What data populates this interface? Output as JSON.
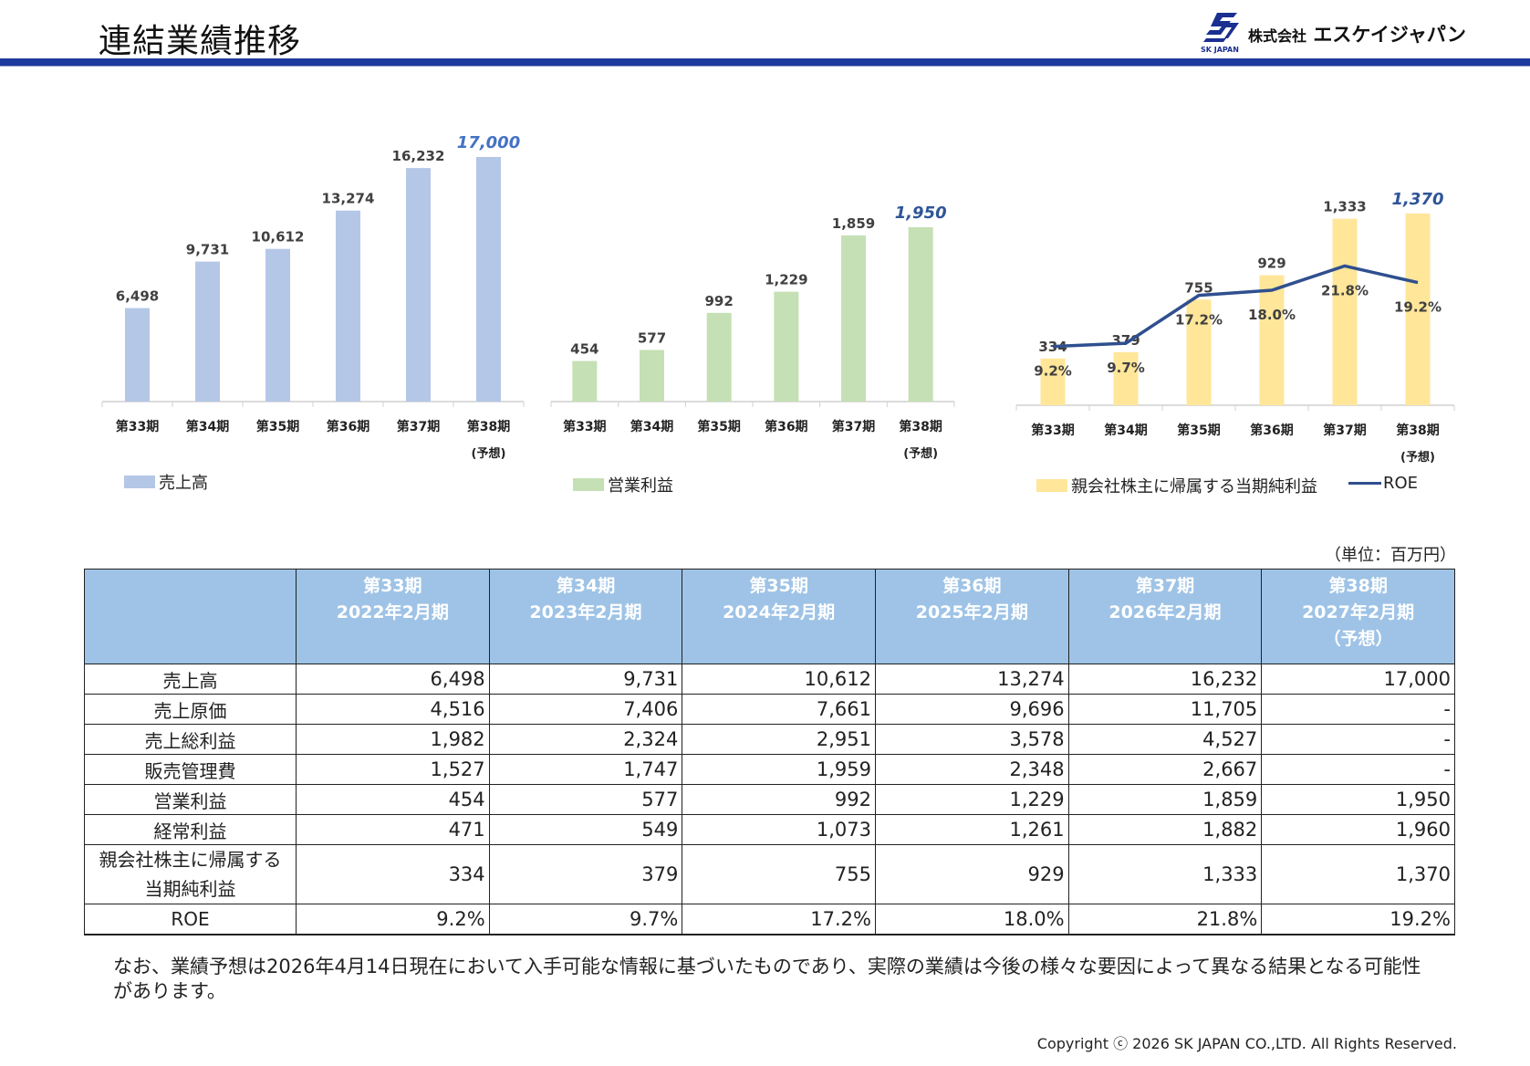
{
  "page": {
    "title": "連結業績推移",
    "company_name": "株式会社 エスケイジャパン",
    "company_name_prefix": "株式会社",
    "company_name_main": "エスケイジャパン",
    "logo_sub": "SK JAPAN",
    "unit_note": "（単位：百万円）",
    "footnote": "なお、業績予想は2026年4月14日現在において入手可能な情報に基づいたものであり、実際の業績は今後の様々な要因によって異なる結果となる可能性があります。",
    "copyright": "Copyright ⓒ 2026 SK JAPAN CO.,LTD. All Rights Reserved."
  },
  "chart_data": [
    {
      "type": "bar",
      "categories": [
        "第33期",
        "第34期",
        "第35期",
        "第36期",
        "第37期",
        "第38期"
      ],
      "category_notes": [
        "",
        "",
        "",
        "",
        "",
        "(予想)"
      ],
      "series": [
        {
          "name": "売上高",
          "values": [
            6498,
            9731,
            10612,
            13274,
            16232,
            17000
          ]
        }
      ],
      "data_labels": [
        "6,498",
        "9,731",
        "10,612",
        "13,274",
        "16,232",
        "17,000"
      ],
      "forecast_index": 5,
      "legend_position": "bottom-left",
      "ylim": [
        0,
        17000
      ],
      "colors": {
        "bar": "#b4c7e7",
        "label": "#404040",
        "forecast_label": "#4472c4"
      }
    },
    {
      "type": "bar",
      "categories": [
        "第33期",
        "第34期",
        "第35期",
        "第36期",
        "第37期",
        "第38期"
      ],
      "category_notes": [
        "",
        "",
        "",
        "",
        "",
        "(予想)"
      ],
      "series": [
        {
          "name": "営業利益",
          "values": [
            454,
            577,
            992,
            1229,
            1859,
            1950
          ]
        }
      ],
      "data_labels": [
        "454",
        "577",
        "992",
        "1,229",
        "1,859",
        "1,950"
      ],
      "forecast_index": 5,
      "legend_position": "bottom-left",
      "ylim": [
        0,
        1950
      ],
      "colors": {
        "bar": "#c5e0b4",
        "label": "#404040",
        "forecast_label": "#2f5597"
      }
    },
    {
      "type": "bar",
      "categories": [
        "第33期",
        "第34期",
        "第35期",
        "第36期",
        "第37期",
        "第38期"
      ],
      "category_notes": [
        "",
        "",
        "",
        "",
        "",
        "(予想)"
      ],
      "series": [
        {
          "name": "親会社株主に帰属する当期純利益",
          "kind": "bar",
          "values": [
            334,
            379,
            755,
            929,
            1333,
            1370
          ]
        },
        {
          "name": "ROE",
          "kind": "line",
          "values": [
            9.2,
            9.7,
            17.2,
            18.0,
            21.8,
            19.2
          ]
        }
      ],
      "data_labels": [
        "334",
        "379",
        "755",
        "929",
        "1,333",
        "1,370"
      ],
      "line_labels": [
        "9.2%",
        "9.7%",
        "17.2%",
        "18.0%",
        "21.8%",
        "19.2%"
      ],
      "forecast_index": 5,
      "legend_position": "bottom",
      "ylim": [
        0,
        1370
      ],
      "y2lim": [
        0,
        30
      ],
      "colors": {
        "bar": "#ffe699",
        "line": "#2f4f8f",
        "label": "#404040",
        "forecast_label": "#2f5597"
      }
    }
  ],
  "table": {
    "headers": [
      {
        "period": "",
        "year": "",
        "note": ""
      },
      {
        "period": "第33期",
        "year": "2022年2月期",
        "note": ""
      },
      {
        "period": "第34期",
        "year": "2023年2月期",
        "note": ""
      },
      {
        "period": "第35期",
        "year": "2024年2月期",
        "note": ""
      },
      {
        "period": "第36期",
        "year": "2025年2月期",
        "note": ""
      },
      {
        "period": "第37期",
        "year": "2026年2月期",
        "note": ""
      },
      {
        "period": "第38期",
        "year": "2027年2月期",
        "note": "（予想）"
      }
    ],
    "rows": [
      {
        "label": "売上高",
        "values": [
          "6,498",
          "9,731",
          "10,612",
          "13,274",
          "16,232",
          "17,000"
        ]
      },
      {
        "label": "売上原価",
        "values": [
          "4,516",
          "7,406",
          "7,661",
          "9,696",
          "11,705",
          "-"
        ]
      },
      {
        "label": "売上総利益",
        "values": [
          "1,982",
          "2,324",
          "2,951",
          "3,578",
          "4,527",
          "-"
        ]
      },
      {
        "label": "販売管理費",
        "values": [
          "1,527",
          "1,747",
          "1,959",
          "2,348",
          "2,667",
          "-"
        ]
      },
      {
        "label": "営業利益",
        "values": [
          "454",
          "577",
          "992",
          "1,229",
          "1,859",
          "1,950"
        ]
      },
      {
        "label": "経常利益",
        "values": [
          "471",
          "549",
          "1,073",
          "1,261",
          "1,882",
          "1,960"
        ]
      },
      {
        "label": "親会社株主に帰属する",
        "label2": "当期純利益",
        "values": [
          "334",
          "379",
          "755",
          "929",
          "1,333",
          "1,370"
        ]
      },
      {
        "label": "ROE",
        "values": [
          "9.2%",
          "9.7%",
          "17.2%",
          "18.0%",
          "21.8%",
          "19.2%"
        ]
      }
    ]
  }
}
